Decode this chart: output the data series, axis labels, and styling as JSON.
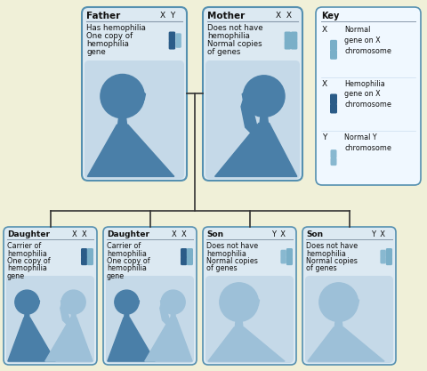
{
  "bg_color": "#f0f0d8",
  "box_fill": "#dce9f2",
  "box_border": "#5590b0",
  "inner_fill": "#c5d9e8",
  "key_fill": "#f0f8ff",
  "sil_dark": "#4a7fa8",
  "sil_light": "#9dc0d8",
  "line_color": "#333333",
  "text_color": "#111111",
  "chrom_light": "#7aafc8",
  "chrom_dark": "#2b5c88",
  "chrom_y_color": "#88b8d0",
  "father": {
    "label": "Father",
    "genes": "X  Y",
    "line1": "Has hemophilia",
    "line2": "One copy of",
    "line3": "hemophilia",
    "line4": "gene",
    "c1": "hemophilia_x",
    "c2": "normal_y"
  },
  "mother": {
    "label": "Mother",
    "genes": "X  X",
    "line1": "Does not have",
    "line2": "hemophilia",
    "line3": "Normal copies",
    "line4": "of genes",
    "c1": "normal_x",
    "c2": "normal_x"
  },
  "key_entries": [
    {
      "sym": "X",
      "ctype": "normal_x",
      "desc": "Normal\ngene on X\nchromosome"
    },
    {
      "sym": "X",
      "ctype": "hemophilia_x",
      "desc": "Hemophilia\ngene on X\nchromosome"
    },
    {
      "sym": "Y",
      "ctype": "normal_y",
      "desc": "Normal Y\nchromosome"
    }
  ],
  "children": [
    {
      "label": "Daughter",
      "genes": "X  X",
      "line1": "Carrier of",
      "line2": "hemophilia",
      "line3": "One copy of",
      "line4": "hemophilia",
      "line5": "gene",
      "c1": "hemophilia_x",
      "c2": "normal_x",
      "stype": "daughter_carrier"
    },
    {
      "label": "Daughter",
      "genes": "X  X",
      "line1": "Carrier of",
      "line2": "hemophilia",
      "line3": "One copy of",
      "line4": "hemophilia",
      "line5": "gene",
      "c1": "hemophilia_x",
      "c2": "normal_x",
      "stype": "daughter_carrier"
    },
    {
      "label": "Son",
      "genes": "Y  X",
      "line1": "Does not have",
      "line2": "hemophilia",
      "line3": "Normal copies",
      "line4": "of genes",
      "line5": "",
      "c1": "normal_y",
      "c2": "normal_x",
      "stype": "son_normal"
    },
    {
      "label": "Son",
      "genes": "Y  X",
      "line1": "Does not have",
      "line2": "hemophilia",
      "line3": "Normal copies",
      "line4": "of genes",
      "line5": "",
      "c1": "normal_y",
      "c2": "normal_x",
      "stype": "son_normal"
    }
  ]
}
